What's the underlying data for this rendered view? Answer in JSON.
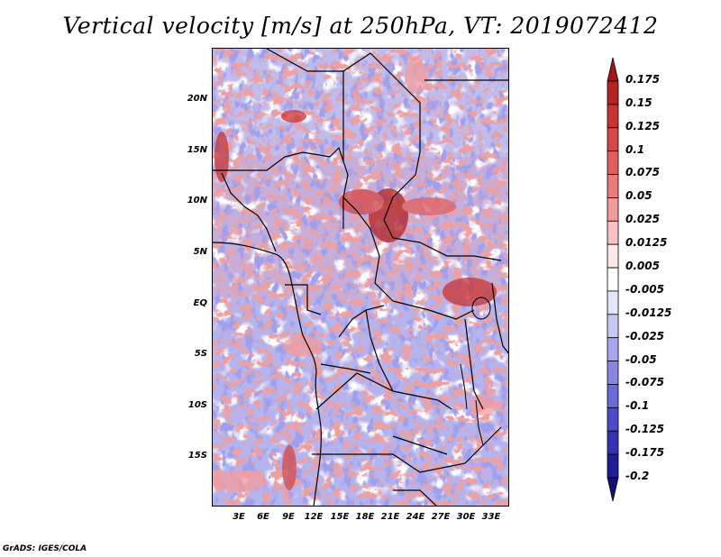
{
  "title": "Vertical velocity [m/s] at 250hPa, VT: 2019072412",
  "footer": "GrADS: IGES/COLA",
  "map": {
    "lat_labels": [
      "20N",
      "15N",
      "10N",
      "5N",
      "EQ",
      "5S",
      "10S",
      "15S"
    ],
    "lon_labels": [
      "3E",
      "6E",
      "9E",
      "12E",
      "15E",
      "18E",
      "21E",
      "24E",
      "27E",
      "30E",
      "33E"
    ]
  },
  "colorbar": {
    "labels": [
      "0.175",
      "0.15",
      "0.125",
      "0.1",
      "0.075",
      "0.05",
      "0.025",
      "0.0125",
      "0.005",
      "-0.005",
      "-0.0125",
      "-0.025",
      "-0.05",
      "-0.075",
      "-0.1",
      "-0.125",
      "-0.175",
      "-0.2"
    ],
    "colors": [
      "#a01818",
      "#b42222",
      "#c63434",
      "#d44848",
      "#e06060",
      "#ea7c7c",
      "#f29c9c",
      "#f8c2c2",
      "#fce8e8",
      "#ffffff",
      "#e6e6fb",
      "#c8c8f4",
      "#a8a8ee",
      "#8888e4",
      "#6a6ad8",
      "#4c4cc8",
      "#3232b2",
      "#1e1e98",
      "#101078"
    ]
  },
  "chart_data": {
    "type": "heatmap",
    "title": "Vertical velocity [m/s] at 250hPa, VT: 2019072412",
    "variable": "Vertical velocity",
    "units": "m/s",
    "level": "250hPa",
    "valid_time": "2019072412",
    "lon_range": [
      0,
      35
    ],
    "lat_range": [
      -20,
      25
    ],
    "contour_levels": [
      -0.2,
      -0.175,
      -0.125,
      -0.1,
      -0.075,
      -0.05,
      -0.025,
      -0.0125,
      -0.005,
      0.005,
      0.0125,
      0.025,
      0.05,
      0.075,
      0.1,
      0.125,
      0.15,
      0.175
    ]
  }
}
